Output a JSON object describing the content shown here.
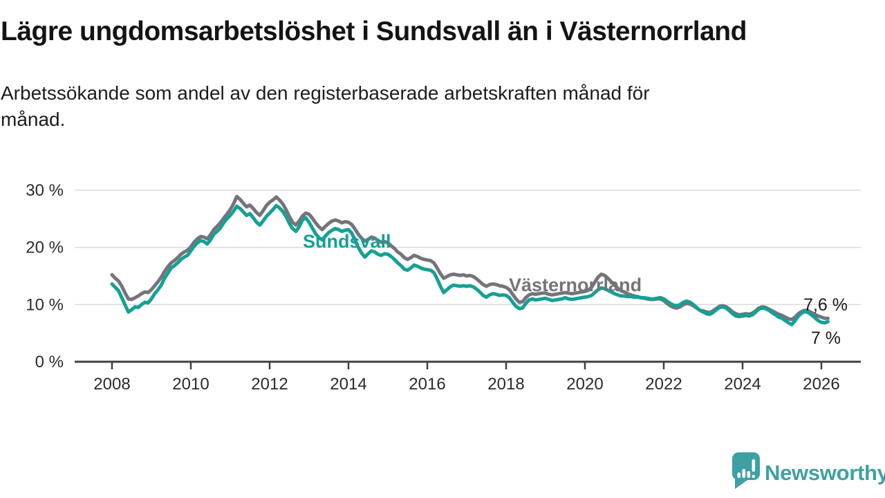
{
  "chart_data": {
    "type": "line",
    "title": "Lägre ungdomsarbetslöshet i Sundsvall än i Västernorrland",
    "subtitle": "Arbetssökande som andel av den registerbaserade arbetskraften månad för\nmånad.",
    "x_start": 2008.0,
    "x_step_years": 0.0833333,
    "ylim": [
      0,
      30
    ],
    "grid": true,
    "legend": "inline-labels",
    "x_tick_values": [
      2008,
      2010,
      2012,
      2014,
      2016,
      2018,
      2020,
      2022,
      2024,
      2026
    ],
    "x_tick_labels": [
      "2008",
      "2010",
      "2012",
      "2014",
      "2016",
      "2018",
      "2020",
      "2022",
      "2024",
      "2026"
    ],
    "y_ticks": [
      {
        "value": 0,
        "label": "0 %"
      },
      {
        "value": 10,
        "label": "10 %"
      },
      {
        "value": 20,
        "label": "20 %"
      },
      {
        "value": 30,
        "label": "30 %"
      }
    ],
    "series": [
      {
        "id": "vasternorrland",
        "name": "Västernorrland",
        "color": "#74747A",
        "end_label": "7,6 %",
        "end_value": 7.6,
        "values": [
          15.2,
          14.6,
          14.1,
          13.2,
          12.0,
          11.0,
          10.9,
          11.2,
          11.5,
          11.9,
          12.2,
          12.1,
          12.6,
          13.3,
          14.0,
          14.8,
          15.8,
          16.6,
          17.3,
          17.7,
          18.2,
          18.8,
          19.2,
          19.5,
          20.1,
          20.9,
          21.5,
          21.9,
          21.8,
          21.5,
          22.2,
          23.1,
          23.7,
          24.3,
          25.1,
          25.8,
          26.6,
          27.6,
          28.9,
          28.4,
          27.7,
          27.1,
          27.4,
          26.8,
          26.1,
          25.6,
          26.4,
          27.3,
          27.9,
          28.3,
          28.8,
          28.3,
          27.6,
          26.6,
          25.4,
          24.4,
          23.9,
          24.6,
          25.5,
          26.0,
          25.8,
          25.1,
          24.3,
          23.6,
          23.1,
          23.7,
          24.2,
          24.6,
          24.8,
          24.6,
          24.3,
          24.5,
          24.4,
          24.0,
          23.2,
          22.3,
          21.6,
          21.1,
          21.4,
          21.8,
          21.6,
          21.2,
          20.9,
          21.0,
          20.8,
          20.3,
          19.8,
          19.2,
          18.8,
          18.2,
          17.9,
          18.2,
          18.6,
          18.4,
          18.1,
          17.9,
          17.8,
          17.7,
          17.3,
          16.4,
          15.4,
          14.6,
          14.9,
          15.2,
          15.3,
          15.2,
          15.1,
          15.2,
          15.0,
          15.1,
          14.9,
          14.5,
          14.0,
          13.5,
          13.2,
          13.5,
          13.6,
          13.5,
          13.3,
          13.2,
          13.0,
          12.6,
          11.8,
          11.0,
          10.4,
          10.5,
          11.2,
          11.7,
          11.9,
          11.8,
          11.9,
          12.0,
          12.0,
          11.8,
          11.7,
          11.8,
          11.9,
          12.0,
          12.1,
          12.0,
          11.9,
          12.0,
          12.1,
          12.2,
          12.3,
          12.5,
          13.0,
          13.9,
          14.8,
          15.3,
          15.1,
          14.6,
          14.0,
          13.4,
          12.9,
          12.4,
          12.2,
          11.9,
          11.7,
          11.5,
          11.4,
          11.2,
          11.1,
          11.0,
          10.9,
          10.9,
          11.0,
          11.0,
          10.7,
          10.2,
          9.8,
          9.5,
          9.4,
          9.6,
          10.0,
          10.2,
          10.1,
          9.8,
          9.4,
          9.0,
          8.9,
          8.7,
          8.6,
          8.9,
          9.3,
          9.7,
          9.8,
          9.6,
          9.2,
          8.7,
          8.4,
          8.2,
          8.3,
          8.4,
          8.3,
          8.5,
          8.9,
          9.4,
          9.6,
          9.5,
          9.2,
          8.9,
          8.6,
          8.3,
          8.1,
          7.8,
          7.5,
          7.4,
          7.8,
          8.4,
          8.8,
          9.0,
          8.9,
          8.6,
          8.3,
          8.0,
          7.8,
          7.6,
          7.6
        ]
      },
      {
        "id": "sundsvall",
        "name": "Sundsvall",
        "color": "#14A195",
        "end_label": "7 %",
        "end_value": 7.0,
        "values": [
          13.6,
          13.0,
          12.4,
          11.2,
          9.9,
          8.7,
          9.1,
          9.6,
          9.5,
          10.0,
          10.4,
          10.3,
          11.0,
          11.9,
          12.6,
          13.4,
          14.6,
          15.5,
          16.4,
          16.8,
          17.3,
          17.9,
          18.3,
          18.6,
          19.4,
          20.2,
          20.8,
          21.2,
          21.0,
          20.6,
          21.3,
          22.3,
          22.8,
          23.4,
          24.3,
          25.0,
          25.6,
          26.3,
          27.2,
          26.8,
          26.2,
          25.6,
          25.9,
          25.2,
          24.4,
          23.9,
          24.6,
          25.4,
          26.0,
          26.6,
          27.3,
          26.9,
          26.3,
          25.4,
          24.2,
          23.3,
          22.8,
          23.6,
          24.8,
          25.2,
          24.4,
          23.4,
          22.4,
          21.7,
          21.3,
          22.0,
          22.6,
          23.0,
          23.3,
          23.1,
          22.8,
          23.0,
          23.1,
          22.5,
          21.3,
          20.0,
          19.0,
          18.3,
          18.9,
          19.4,
          19.2,
          18.8,
          18.6,
          18.9,
          18.8,
          18.4,
          17.9,
          17.3,
          16.8,
          16.2,
          16.0,
          16.4,
          16.9,
          16.7,
          16.4,
          16.2,
          16.1,
          16.0,
          15.6,
          14.5,
          13.2,
          12.1,
          12.6,
          13.1,
          13.4,
          13.3,
          13.2,
          13.3,
          13.2,
          13.3,
          13.1,
          12.7,
          12.2,
          11.6,
          11.3,
          11.7,
          11.9,
          11.8,
          11.6,
          11.7,
          11.6,
          11.2,
          10.4,
          9.7,
          9.3,
          9.4,
          10.2,
          10.8,
          11.0,
          10.8,
          10.9,
          11.0,
          11.1,
          10.9,
          10.7,
          10.8,
          10.9,
          11.0,
          11.2,
          11.0,
          10.9,
          11.0,
          11.1,
          11.2,
          11.3,
          11.4,
          11.6,
          12.1,
          12.6,
          12.9,
          12.8,
          12.5,
          12.2,
          11.9,
          11.7,
          11.5,
          11.5,
          11.4,
          11.4,
          11.3,
          11.3,
          11.2,
          11.2,
          11.1,
          11.0,
          11.0,
          11.1,
          11.2,
          11.0,
          10.6,
          10.2,
          9.9,
          9.8,
          10.0,
          10.4,
          10.6,
          10.4,
          10.0,
          9.5,
          9.0,
          8.7,
          8.4,
          8.3,
          8.6,
          9.1,
          9.5,
          9.6,
          9.4,
          8.9,
          8.4,
          8.0,
          7.9,
          8.0,
          8.1,
          8.0,
          8.2,
          8.7,
          9.2,
          9.4,
          9.3,
          9.0,
          8.6,
          8.2,
          7.8,
          7.6,
          7.2,
          6.8,
          6.5,
          7.2,
          8.0,
          8.5,
          8.8,
          8.6,
          8.2,
          7.7,
          7.2,
          6.9,
          6.8,
          7.0
        ]
      }
    ],
    "colors": {
      "grid": "#DCDCDC",
      "axis": "#3F3F44",
      "tick_text": "#2b2b2b",
      "value_label_text": "#1a1a1a"
    }
  },
  "branding": {
    "logo_text": "Newsworthy",
    "logo_color": "#3FA0A3",
    "logo_icon": "speech-bubble-bar-chart-exclamation-icon"
  }
}
